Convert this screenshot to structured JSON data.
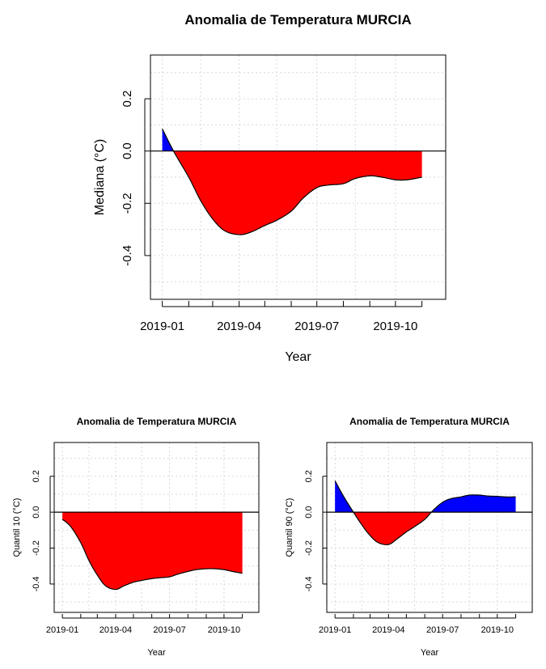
{
  "colors": {
    "positive": "#0000ff",
    "negative": "#ff0000"
  },
  "chart_data": [
    {
      "type": "area",
      "title": "Anomalia de Temperatura MURCIA",
      "xlabel": "Year",
      "ylabel": "Mediana (°C)",
      "xlim": [
        "2019-01-01",
        "2019-11-15"
      ],
      "ylim": [
        -0.53,
        0.33
      ],
      "yticks": [
        -0.4,
        -0.2,
        0.0,
        0.2
      ],
      "ytick_labels": [
        "-0.4",
        "-0.2",
        "0.0",
        "0.2"
      ],
      "xtick_labels": [
        "2019-01",
        "2019-04",
        "2019-07",
        "2019-10"
      ],
      "grid": true,
      "x": [
        "2019-01-01",
        "2019-01-15",
        "2019-02-01",
        "2019-02-15",
        "2019-03-01",
        "2019-03-15",
        "2019-04-01",
        "2019-04-15",
        "2019-05-01",
        "2019-05-15",
        "2019-06-01",
        "2019-06-15",
        "2019-07-01",
        "2019-07-15",
        "2019-08-01",
        "2019-08-15",
        "2019-09-01",
        "2019-09-15",
        "2019-10-01",
        "2019-10-15",
        "2019-11-01"
      ],
      "y": [
        0.085,
        -0.005,
        -0.1,
        -0.19,
        -0.26,
        -0.305,
        -0.32,
        -0.31,
        -0.285,
        -0.265,
        -0.23,
        -0.18,
        -0.14,
        -0.13,
        -0.125,
        -0.105,
        -0.095,
        -0.1,
        -0.11,
        -0.11,
        -0.1
      ]
    },
    {
      "type": "area",
      "title": "Anomalia de Temperatura MURCIA",
      "xlabel": "Year",
      "ylabel": "Quantil 10 (°C)",
      "xlim": [
        "2019-01-01",
        "2019-11-15"
      ],
      "ylim": [
        -0.52,
        0.35
      ],
      "yticks": [
        -0.4,
        -0.2,
        0.0,
        0.2
      ],
      "ytick_labels": [
        "-0.4",
        "-0.2",
        "0.0",
        "0.2"
      ],
      "xtick_labels": [
        "2019-01",
        "2019-04",
        "2019-07",
        "2019-10"
      ],
      "grid": true,
      "x": [
        "2019-01-01",
        "2019-01-15",
        "2019-02-01",
        "2019-02-15",
        "2019-03-01",
        "2019-03-15",
        "2019-04-01",
        "2019-04-15",
        "2019-05-01",
        "2019-05-15",
        "2019-06-01",
        "2019-06-15",
        "2019-07-01",
        "2019-07-15",
        "2019-08-01",
        "2019-08-15",
        "2019-09-01",
        "2019-09-15",
        "2019-10-01",
        "2019-10-15",
        "2019-11-01"
      ],
      "y": [
        -0.04,
        -0.08,
        -0.17,
        -0.27,
        -0.35,
        -0.41,
        -0.43,
        -0.41,
        -0.39,
        -0.38,
        -0.37,
        -0.365,
        -0.36,
        -0.345,
        -0.33,
        -0.32,
        -0.315,
        -0.315,
        -0.32,
        -0.33,
        -0.34
      ]
    },
    {
      "type": "area",
      "title": "Anomalia de Temperatura MURCIA",
      "xlabel": "Year",
      "ylabel": "Quantil 90 (°C)",
      "xlim": [
        "2019-01-01",
        "2019-11-15"
      ],
      "ylim": [
        -0.52,
        0.35
      ],
      "yticks": [
        -0.4,
        -0.2,
        0.0,
        0.2
      ],
      "ytick_labels": [
        "-0.4",
        "-0.2",
        "0.0",
        "0.2"
      ],
      "xtick_labels": [
        "2019-01",
        "2019-04",
        "2019-07",
        "2019-10"
      ],
      "grid": true,
      "x": [
        "2019-01-01",
        "2019-01-15",
        "2019-02-01",
        "2019-02-15",
        "2019-03-01",
        "2019-03-15",
        "2019-04-01",
        "2019-04-15",
        "2019-05-01",
        "2019-05-15",
        "2019-06-01",
        "2019-06-15",
        "2019-07-01",
        "2019-07-15",
        "2019-08-01",
        "2019-08-15",
        "2019-09-01",
        "2019-09-15",
        "2019-10-01",
        "2019-10-15",
        "2019-11-01"
      ],
      "y": [
        0.175,
        0.09,
        0.0,
        -0.07,
        -0.13,
        -0.17,
        -0.18,
        -0.15,
        -0.11,
        -0.08,
        -0.04,
        0.01,
        0.055,
        0.075,
        0.085,
        0.095,
        0.095,
        0.09,
        0.088,
        0.085,
        0.085
      ]
    }
  ]
}
